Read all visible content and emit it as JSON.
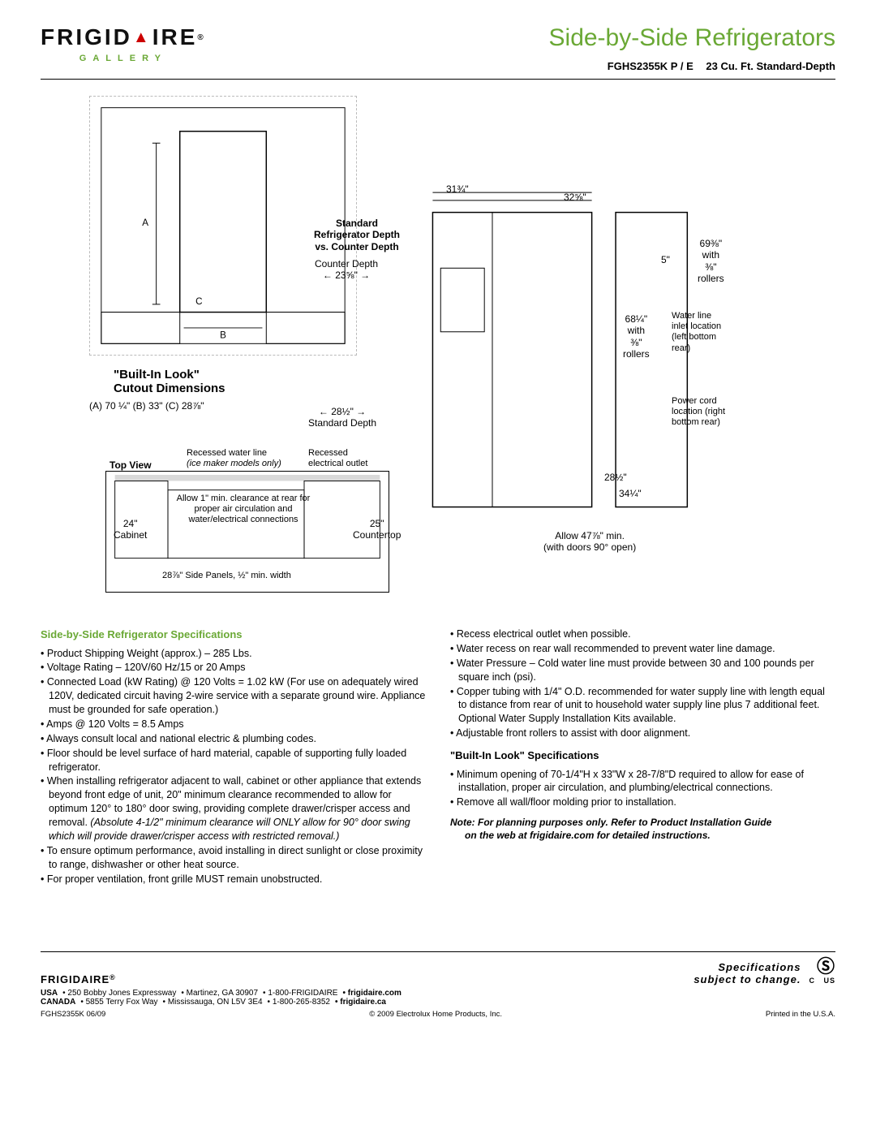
{
  "brand": {
    "name_left": "FRIGID",
    "name_right": "IRE",
    "reg": "®",
    "sub": "GALLERY"
  },
  "header": {
    "category": "Side-by-Side Refrigerators",
    "model": "FGHS2355K P / E",
    "desc": "23 Cu. Ft. Standard-Depth"
  },
  "diagram": {
    "cutout_title1": "\"Built-In Look\"",
    "cutout_title2": "Cutout Dimensions",
    "cutout_dims": "(A) 70 ¼\"   (B) 33\"   (C) 28⅞\"",
    "std_title1": "Standard",
    "std_title2": "Refrigerator Depth",
    "std_title3": "vs. Counter Depth",
    "counter_depth_lbl": "Counter Depth",
    "counter_depth_arrow": "← 23⅝\" →",
    "standard_depth_arrow": "← 28½\" →",
    "standard_depth_lbl": "Standard Depth",
    "topview": "Top View",
    "recessed_water": "Recessed water line",
    "ice_note": "(ice maker models only)",
    "recessed_outlet": "Recessed",
    "recessed_outlet2": "electrical outlet",
    "cabinet_24": "24\"",
    "cabinet_lbl": "Cabinet",
    "countertop_25": "25\"",
    "countertop_lbl": "Countertop",
    "clearance": "Allow 1\" min. clearance at rear for proper air circulation and water/electrical connections",
    "side_panels": "28⅞\" Side Panels, ½\" min. width",
    "w1": "31¾\"",
    "w2": "32⅝\"",
    "h1": "69⅜\"",
    "h1_sub": "with",
    "h1_sub2": "⅜\"",
    "h1_sub3": "rollers",
    "h2": "68¼\"",
    "h2_sub": "with",
    "h2_sub2": "⅜\"",
    "h2_sub3": "rollers",
    "d_handle": "5\"",
    "water_inlet": "Water line inlet location (left bottom rear)",
    "power_cord": "Power cord location (right bottom rear)",
    "d1": "28½\"",
    "d2": "34¼\"",
    "door_open": "Allow 47⅞\" min.",
    "door_open2": "(with doors 90° open)",
    "letter_a": "A",
    "letter_b": "B",
    "letter_c": "C"
  },
  "specs": {
    "heading": "Side-by-Side Refrigerator Specifications",
    "left": [
      "Product Shipping Weight (approx.) – 285 Lbs.",
      "Voltage Rating – 120V/60 Hz/15 or 20 Amps",
      "Connected Load (kW Rating) @ 120 Volts = 1.02 kW (For use on adequately wired 120V, dedicated circuit having 2-wire service with a separate ground wire. Appliance must be grounded for safe operation.)",
      "Amps @ 120 Volts = 8.5 Amps",
      "Always consult local and national electric & plumbing codes.",
      "Floor should be level surface of hard material, capable of supporting fully loaded refrigerator.",
      "When installing refrigerator adjacent to wall, cabinet or other appliance that extends beyond front edge of unit, 20\" minimum clearance recommended to allow for optimum 120° to 180° door swing, providing complete drawer/crisper access and removal. <em>(Absolute 4-1/2\" minimum clearance will ONLY allow for 90° door swing which will provide drawer/crisper access with restricted removal.)</em>",
      "To ensure optimum performance, avoid installing in direct sunlight or close proximity to range, dishwasher or other heat source.",
      "For proper ventilation, front grille MUST remain unobstructed."
    ],
    "right": [
      "Recess electrical outlet when possible.",
      "Water recess on rear wall recommended to prevent water line damage.",
      "Water Pressure – Cold water line must provide between 30 and 100 pounds per square inch (psi).",
      "Copper tubing with 1/4\" O.D. recommended for water supply line with length equal to distance from rear of unit to household water supply line plus 7 additional feet. Optional Water Supply Installation Kits available.",
      "Adjustable front rollers to assist with door alignment."
    ],
    "builtin_heading": "\"Built-In Look\" Specifications",
    "builtin": [
      "Minimum opening of 70-1/4\"H x 33\"W x 28-7/8\"D required to allow for ease of installation, proper air circulation, and plumbing/electrical connections.",
      "Remove all wall/floor molding prior to installation."
    ],
    "note_line1": "Note: For planning purposes only. Refer to Product Installation Guide",
    "note_line2": "on the web at frigidaire.com for detailed instructions."
  },
  "footer": {
    "brand": "FRIGIDAIRE",
    "reg": "®",
    "usa_lbl": "USA",
    "usa_addr": "• 250 Bobby Jones Expressway",
    "usa_city": "• Martinez, GA 30907",
    "usa_phone": "• 1-800-FRIGIDAIRE",
    "usa_web": "• frigidaire.com",
    "can_lbl": "CANADA",
    "can_addr": "• 5855 Terry Fox Way",
    "can_city": "• Mississauga, ON L5V 3E4",
    "can_phone": "• 1-800-265-8352",
    "can_web": "• frigidaire.ca",
    "model_date": "FGHS2355K  06/09",
    "copyright": "© 2009 Electrolux Home Products, Inc.",
    "printed": "Printed in the U.S.A.",
    "spec_note1": "Specifications",
    "spec_note2": "subject to change.",
    "csa_c": "C",
    "csa_us": "US"
  }
}
